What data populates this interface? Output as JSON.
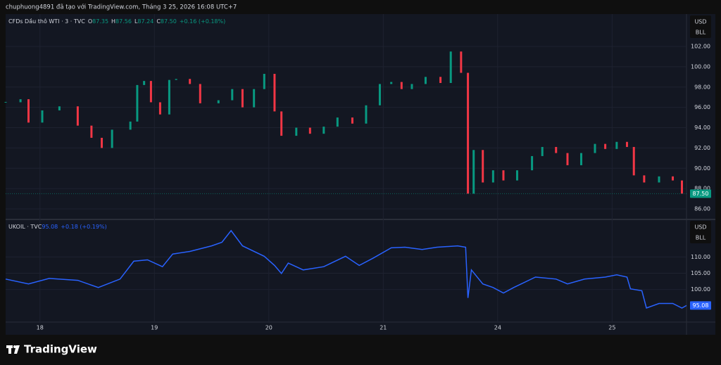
{
  "header": "chuphuong4891 đã tạo với TradingView.com, Tháng 3 25, 2026 16:08 UTC+7",
  "footer": "TradingView",
  "chart_data": [
    {
      "type": "candlestick",
      "title": "CFDs Dầu thô WTI · 3 · TVC",
      "legend": [
        {
          "label": "O",
          "value": "87.35"
        },
        {
          "label": "H",
          "value": "87.56"
        },
        {
          "label": "L",
          "value": "87.24"
        },
        {
          "label": "C",
          "value": "87.50"
        }
      ],
      "change": "+0.16 (+0.18%)",
      "units": [
        "USD",
        "BLL"
      ],
      "colors": {
        "up": "#089981",
        "down": "#f23645"
      },
      "x": [
        -0.3,
        -0.17,
        -0.1,
        0.02,
        0.17,
        0.33,
        0.45,
        0.54,
        0.63,
        0.79,
        0.85,
        0.91,
        0.97,
        1.05,
        1.13,
        1.19,
        1.31,
        1.4,
        1.56,
        1.68,
        1.77,
        1.87,
        1.96,
        2.05,
        2.11,
        2.24,
        2.36,
        2.48,
        2.6,
        2.73,
        2.85,
        2.97,
        3.07,
        3.16,
        3.25,
        3.37,
        3.5,
        3.59,
        3.68,
        3.74,
        3.79,
        3.87,
        3.96,
        4.05,
        4.17,
        4.3,
        4.39,
        4.51,
        4.61,
        4.73,
        4.85,
        4.94,
        5.04,
        5.13,
        5.19,
        5.28,
        5.41,
        5.53,
        5.61
      ],
      "values": [
        96.5,
        96.8,
        94.5,
        95.7,
        96.1,
        94.2,
        93.0,
        92.0,
        93.8,
        94.6,
        98.2,
        98.6,
        96.5,
        95.3,
        98.7,
        98.8,
        98.3,
        96.4,
        96.7,
        97.8,
        96.0,
        97.8,
        99.3,
        95.6,
        93.2,
        94.0,
        93.4,
        94.1,
        95.0,
        94.4,
        96.2,
        98.3,
        98.5,
        97.8,
        98.3,
        99.0,
        98.4,
        101.5,
        99.4,
        87.5,
        91.8,
        88.6,
        89.8,
        88.8,
        89.8,
        91.2,
        92.1,
        91.5,
        90.3,
        91.5,
        92.4,
        91.9,
        92.6,
        92.1,
        89.3,
        88.6,
        89.2,
        88.8,
        87.5
      ],
      "last_price": {
        "value": 87.5,
        "label": "87.50"
      },
      "xlim": [
        -0.3,
        5.65
      ],
      "ylim": [
        85.1,
        105.05
      ],
      "yticks": [
        {
          "value": 86,
          "label": "86.00"
        },
        {
          "value": 88,
          "label": "88.00"
        },
        {
          "value": 90,
          "label": "90.00"
        },
        {
          "value": 92,
          "label": "92.00"
        },
        {
          "value": 94,
          "label": "94.00"
        },
        {
          "value": 96,
          "label": "96.00"
        },
        {
          "value": 98,
          "label": "98.00"
        },
        {
          "value": 100,
          "label": "100.00"
        },
        {
          "value": 102,
          "label": "102.00"
        }
      ],
      "grid": true
    },
    {
      "type": "line",
      "title": "UKOIL · TVC",
      "legend": [
        {
          "label": "",
          "value": "95.08"
        }
      ],
      "change": "+0.18 (+0.19%)",
      "units": [
        "USD",
        "BLL"
      ],
      "color": "#2962ff",
      "x": [
        -0.3,
        -0.1,
        0.08,
        0.33,
        0.51,
        0.7,
        0.82,
        0.94,
        1.07,
        1.16,
        1.31,
        1.5,
        1.59,
        1.67,
        1.77,
        1.96,
        2.05,
        2.11,
        2.17,
        2.3,
        2.48,
        2.67,
        2.79,
        2.91,
        3.07,
        3.19,
        3.34,
        3.47,
        3.65,
        3.72,
        3.74,
        3.77,
        3.87,
        3.96,
        4.05,
        4.14,
        4.33,
        4.51,
        4.61,
        4.76,
        4.94,
        5.04,
        5.13,
        5.16,
        5.26,
        5.3,
        5.41,
        5.53,
        5.61,
        5.65
      ],
      "values": [
        103.2,
        101.7,
        103.4,
        102.8,
        100.6,
        103.2,
        108.7,
        109.1,
        107.0,
        110.9,
        111.7,
        113.4,
        114.5,
        118.1,
        113.4,
        110.2,
        107.4,
        104.9,
        108.1,
        106.0,
        107.0,
        110.2,
        107.4,
        109.6,
        112.8,
        113.0,
        112.3,
        113.0,
        113.4,
        113.0,
        97.4,
        106.0,
        101.7,
        100.6,
        98.9,
        100.6,
        103.8,
        103.2,
        101.7,
        103.2,
        103.8,
        104.5,
        103.8,
        100.2,
        99.6,
        94.3,
        95.7,
        95.7,
        94.3,
        95.08
      ],
      "xlim": [
        -0.3,
        5.65
      ],
      "ylim": [
        90.4,
        121.1
      ],
      "yticks": [
        {
          "value": 100,
          "label": "100.00"
        },
        {
          "value": 105,
          "label": "105.00"
        },
        {
          "value": 110,
          "label": "110.00"
        }
      ],
      "xticks": [
        {
          "value": 0,
          "label": "18"
        },
        {
          "value": 1,
          "label": "19"
        },
        {
          "value": 2,
          "label": "20"
        },
        {
          "value": 3,
          "label": "21"
        },
        {
          "value": 4,
          "label": "24"
        },
        {
          "value": 5,
          "label": "25"
        }
      ],
      "grid": true
    }
  ]
}
